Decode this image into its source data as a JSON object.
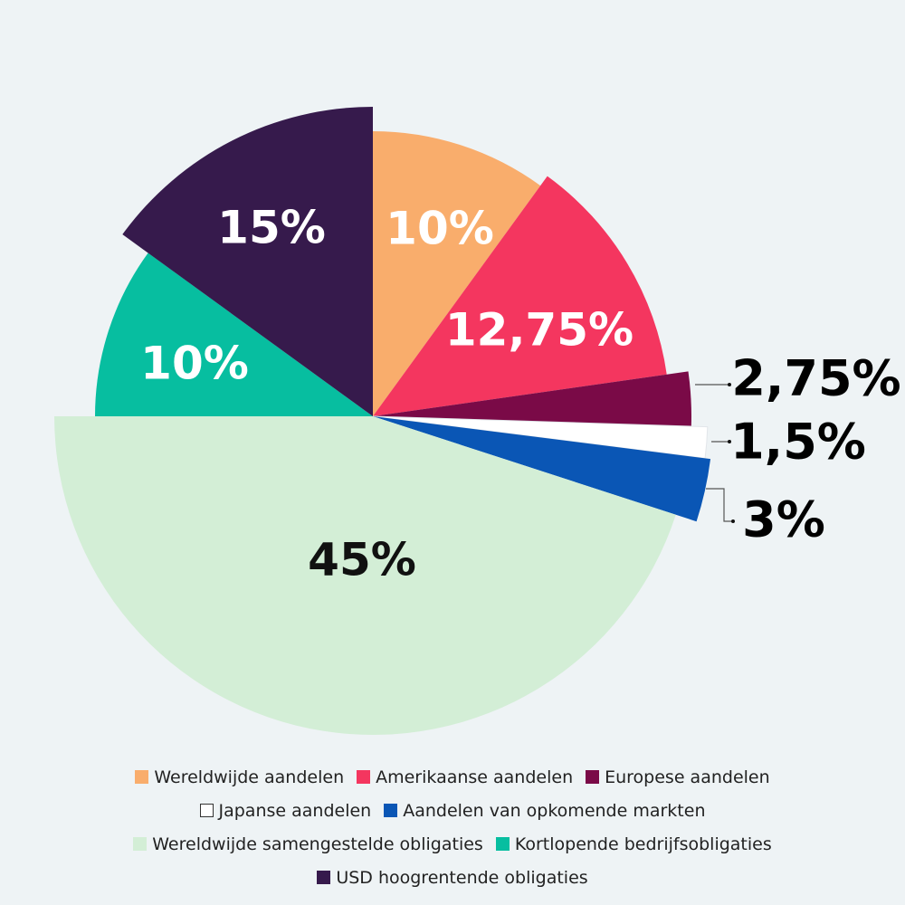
{
  "chart_data": {
    "type": "pie",
    "categories": [
      "Wereldwijde aandelen",
      "Amerikaanse aandelen",
      "Europese aandelen",
      "Japanse aandelen",
      "Aandelen van opkomende markten",
      "Wereldwijde samengestelde obligaties",
      "Kortlopende bedrijfsobligaties",
      "USD hoogrentende obligaties"
    ],
    "values": [
      10,
      12.75,
      2.75,
      1.5,
      3,
      45,
      10,
      15
    ],
    "value_labels": [
      "10%",
      "12,75%",
      "2,75%",
      "1,5%",
      "3%",
      "45%",
      "10%",
      "15%"
    ],
    "colors": [
      "#f9ad6c",
      "#f4365f",
      "#7a0a47",
      "#ffffff",
      "#0a56b5",
      "#d3eed6",
      "#07bea0",
      "#361a4c"
    ]
  }
}
